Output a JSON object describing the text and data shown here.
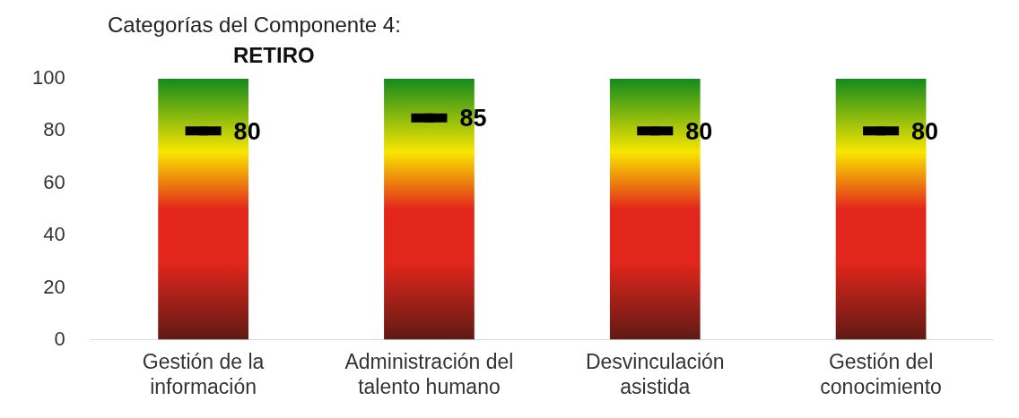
{
  "chart_data": {
    "type": "bar",
    "title": "Categorías del Componente 4:",
    "subtitle": "RETIRO",
    "categories": [
      "Gestión de la información",
      "Administración del talento humano",
      "Desvinculación asistida",
      "Gestión del conocimiento"
    ],
    "series": [
      {
        "color": "#e3261c",
        "values": [
          100,
          100,
          100,
          100
        ]
      },
      {
        "type": "scatter",
        "color": "#000000",
        "values": [
          80,
          85,
          80,
          80
        ],
        "value_labels": [
          "80",
          "85",
          "80",
          "80"
        ]
      }
    ],
    "ylim": [
      0,
      100
    ],
    "yticks": [
      0,
      20,
      40,
      60,
      80,
      100
    ],
    "grid": false,
    "legend": false
  }
}
